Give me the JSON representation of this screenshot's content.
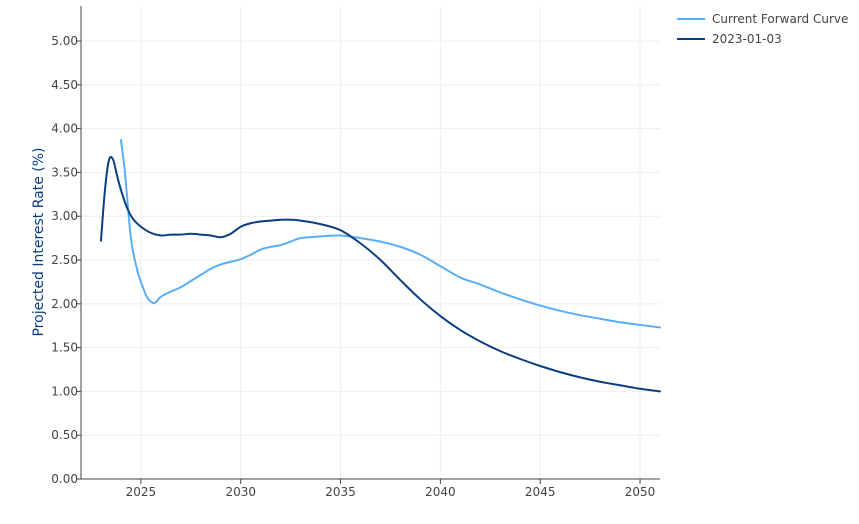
{
  "chart_data": {
    "type": "line",
    "title": "",
    "xlabel": "",
    "ylabel": "Projected Interest Rate (%)",
    "xlim": [
      2022.0,
      2051.0
    ],
    "ylim": [
      0,
      5.4
    ],
    "x_ticks": [
      2025,
      2030,
      2035,
      2040,
      2045,
      2050
    ],
    "x_tick_labels": [
      "2025",
      "2030",
      "2035",
      "2040",
      "2045",
      "2050"
    ],
    "y_ticks": [
      0,
      0.5,
      1.0,
      1.5,
      2.0,
      2.5,
      3.0,
      3.5,
      4.0,
      4.5,
      5.0
    ],
    "y_tick_labels": [
      "0.00",
      "0.50",
      "1.00",
      "1.50",
      "2.00",
      "2.50",
      "3.00",
      "3.50",
      "4.00",
      "4.50",
      "5.00"
    ],
    "grid": true,
    "legend_position": "top-right",
    "series": [
      {
        "name": "Current Forward Curve",
        "color": "#5aaef5",
        "x": [
          2024.0,
          2024.2,
          2024.5,
          2024.8,
          2025.0,
          2025.3,
          2025.6,
          2025.8,
          2026.0,
          2026.5,
          2027.0,
          2027.5,
          2028.0,
          2028.5,
          2029.0,
          2029.5,
          2030.0,
          2030.5,
          2031.0,
          2031.5,
          2032.0,
          2032.5,
          2033.0,
          2034.0,
          2035.0,
          2036.0,
          2037.0,
          2038.0,
          2039.0,
          2040.0,
          2041.0,
          2042.0,
          2043.0,
          2044.0,
          2045.0,
          2046.0,
          2047.0,
          2048.0,
          2049.0,
          2050.0,
          2051.0
        ],
        "y": [
          3.87,
          3.5,
          2.75,
          2.4,
          2.25,
          2.08,
          2.01,
          2.03,
          2.08,
          2.14,
          2.19,
          2.26,
          2.33,
          2.4,
          2.45,
          2.48,
          2.51,
          2.56,
          2.62,
          2.65,
          2.67,
          2.71,
          2.75,
          2.77,
          2.78,
          2.75,
          2.71,
          2.65,
          2.56,
          2.43,
          2.3,
          2.22,
          2.13,
          2.05,
          1.98,
          1.92,
          1.87,
          1.83,
          1.79,
          1.76,
          1.73
        ]
      },
      {
        "name": "2023-01-03",
        "color": "#0a3d82",
        "x": [
          2023.0,
          2023.2,
          2023.4,
          2023.6,
          2023.8,
          2024.0,
          2024.3,
          2024.6,
          2025.0,
          2025.5,
          2026.0,
          2026.5,
          2027.0,
          2027.5,
          2028.0,
          2028.5,
          2029.0,
          2029.5,
          2030.0,
          2030.5,
          2031.0,
          2031.5,
          2032.0,
          2032.5,
          2033.0,
          2034.0,
          2035.0,
          2036.0,
          2037.0,
          2038.0,
          2039.0,
          2040.0,
          2041.0,
          2042.0,
          2043.0,
          2044.0,
          2045.0,
          2046.0,
          2047.0,
          2048.0,
          2049.0,
          2050.0,
          2051.0
        ],
        "y": [
          2.72,
          3.3,
          3.64,
          3.65,
          3.47,
          3.3,
          3.1,
          2.97,
          2.88,
          2.81,
          2.78,
          2.79,
          2.79,
          2.8,
          2.79,
          2.78,
          2.76,
          2.8,
          2.88,
          2.92,
          2.94,
          2.95,
          2.96,
          2.96,
          2.95,
          2.91,
          2.84,
          2.69,
          2.5,
          2.27,
          2.05,
          1.86,
          1.7,
          1.57,
          1.46,
          1.37,
          1.29,
          1.22,
          1.16,
          1.11,
          1.07,
          1.03,
          1.0
        ]
      }
    ]
  }
}
